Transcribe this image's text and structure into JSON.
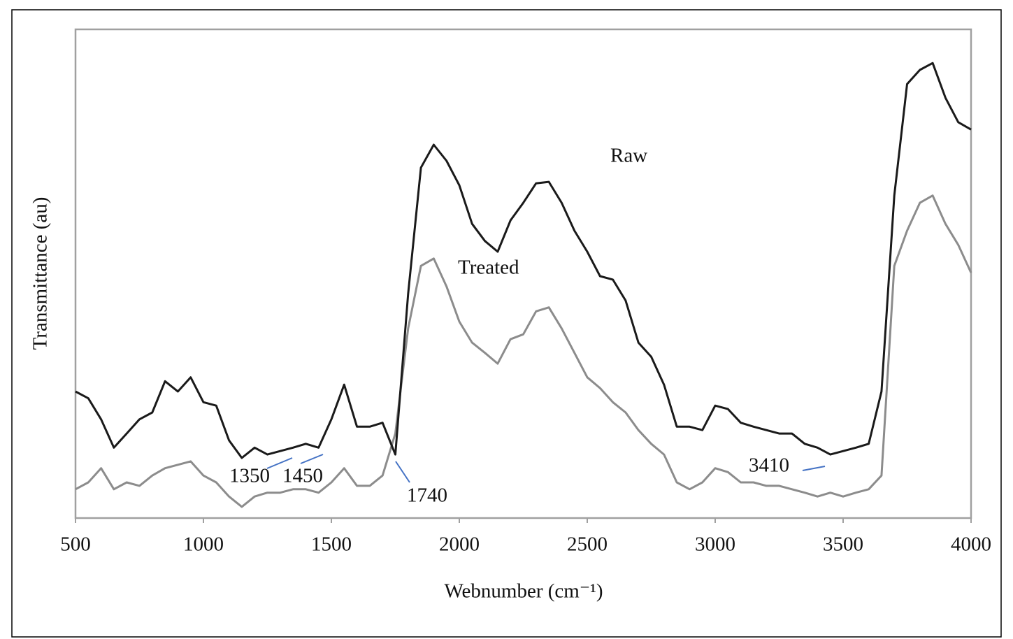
{
  "chart_data": {
    "type": "line",
    "x_label": "Webnumber (cm⁻¹)",
    "y_label": "Transmittance (au)",
    "x": [
      500,
      550,
      600,
      650,
      700,
      750,
      800,
      850,
      900,
      950,
      1000,
      1050,
      1100,
      1150,
      1200,
      1250,
      1300,
      1350,
      1400,
      1450,
      1500,
      1550,
      1600,
      1650,
      1700,
      1750,
      1800,
      1850,
      1900,
      1950,
      2000,
      2050,
      2100,
      2150,
      2200,
      2250,
      2300,
      2350,
      2400,
      2450,
      2500,
      2550,
      2600,
      2650,
      2700,
      2750,
      2800,
      2850,
      2900,
      2950,
      3000,
      3050,
      3100,
      3150,
      3200,
      3250,
      3300,
      3350,
      3400,
      3450,
      3500,
      3550,
      3600,
      3650,
      3700,
      3750,
      3800,
      3850,
      3900,
      3950,
      4000
    ],
    "series": [
      {
        "name": "Raw",
        "color": "#1a1a1a",
        "values": [
          25.9,
          24.5,
          20.2,
          14.4,
          17.3,
          20.2,
          21.6,
          28.0,
          25.9,
          28.8,
          23.7,
          23.0,
          15.9,
          12.3,
          14.4,
          13.0,
          13.7,
          14.4,
          15.2,
          14.4,
          20.2,
          27.3,
          18.7,
          18.7,
          19.5,
          13.0,
          45.9,
          71.7,
          76.4,
          73.1,
          68.1,
          60.2,
          56.7,
          54.5,
          60.9,
          64.5,
          68.5,
          68.8,
          64.5,
          58.8,
          54.5,
          49.5,
          48.8,
          44.5,
          35.9,
          33.0,
          27.3,
          18.7,
          18.7,
          18.0,
          23.0,
          22.3,
          19.5,
          18.7,
          18.0,
          17.3,
          17.3,
          15.2,
          14.4,
          13.0,
          13.7,
          14.4,
          15.2,
          25.9,
          66.0,
          88.8,
          91.7,
          93.1,
          86.0,
          81.0,
          79.5
        ]
      },
      {
        "name": "Treated",
        "color": "#8c8c8c",
        "values": [
          5.9,
          7.3,
          10.2,
          5.9,
          7.3,
          6.6,
          8.7,
          10.2,
          10.9,
          11.6,
          8.7,
          7.3,
          4.4,
          2.3,
          4.4,
          5.2,
          5.2,
          5.9,
          5.9,
          5.2,
          7.3,
          10.2,
          6.6,
          6.6,
          8.7,
          17.3,
          38.8,
          51.6,
          53.1,
          47.4,
          40.2,
          35.9,
          33.8,
          31.6,
          36.6,
          37.6,
          42.3,
          43.1,
          38.8,
          33.8,
          28.8,
          26.6,
          23.7,
          21.6,
          18.0,
          15.2,
          13.0,
          7.3,
          5.9,
          7.3,
          10.2,
          9.4,
          7.3,
          7.3,
          6.6,
          6.6,
          5.9,
          5.2,
          4.4,
          5.2,
          4.4,
          5.2,
          5.9,
          8.7,
          51.6,
          58.8,
          64.5,
          66.0,
          60.2,
          55.9,
          50.2
        ]
      }
    ],
    "annotations": [
      "1350",
      "1450",
      "1740",
      "3410"
    ],
    "xlim": [
      500,
      4000
    ],
    "xticks": [
      500,
      1000,
      1500,
      2000,
      2500,
      3000,
      3500,
      4000
    ],
    "ylim": [
      0,
      100
    ]
  }
}
